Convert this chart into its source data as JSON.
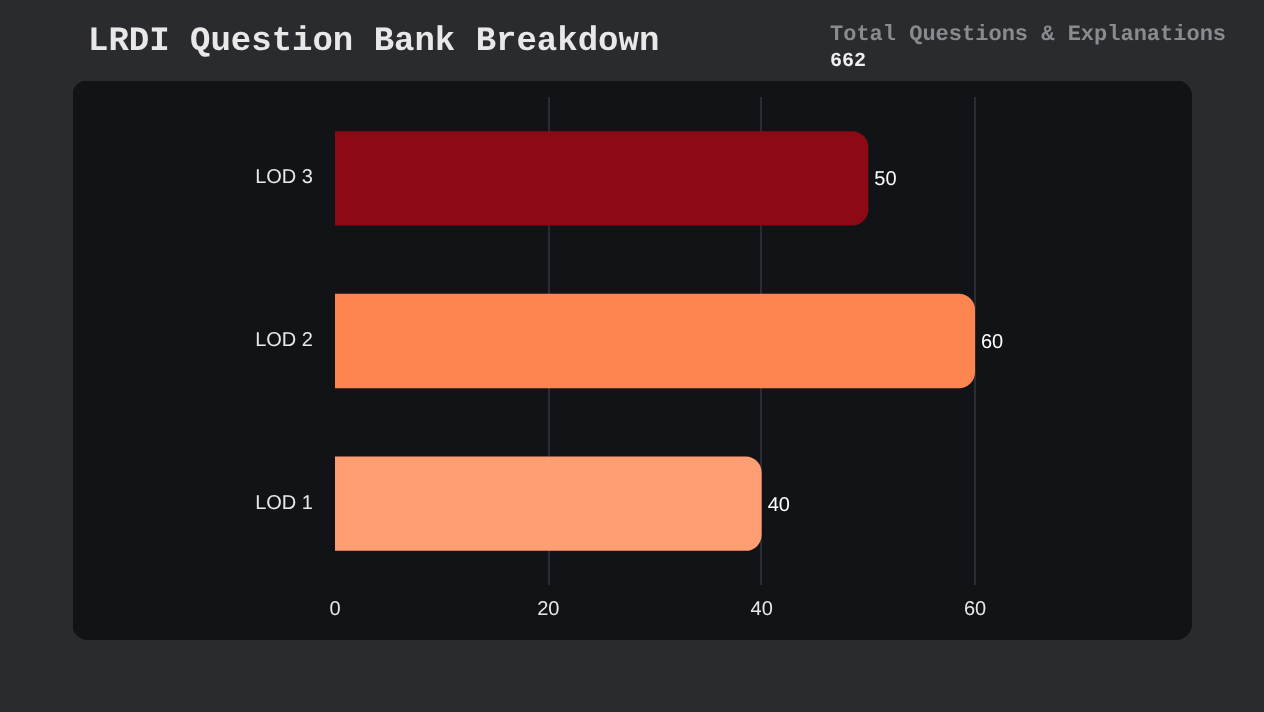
{
  "chart_data": {
    "type": "bar",
    "orientation": "horizontal",
    "title": "LRDI Question Bank Breakdown",
    "annotations": [
      "Total Questions & Explanations",
      "662"
    ],
    "categories": [
      "LOD 3",
      "LOD 2",
      "LOD 1"
    ],
    "values": [
      50,
      60,
      40
    ],
    "colors": [
      "#8b0a14",
      "#fd8550",
      "#fe9e72"
    ],
    "xlim": [
      0,
      66
    ],
    "xticks": [
      0,
      20,
      40,
      60
    ],
    "grid": "x",
    "data_labels": true
  }
}
